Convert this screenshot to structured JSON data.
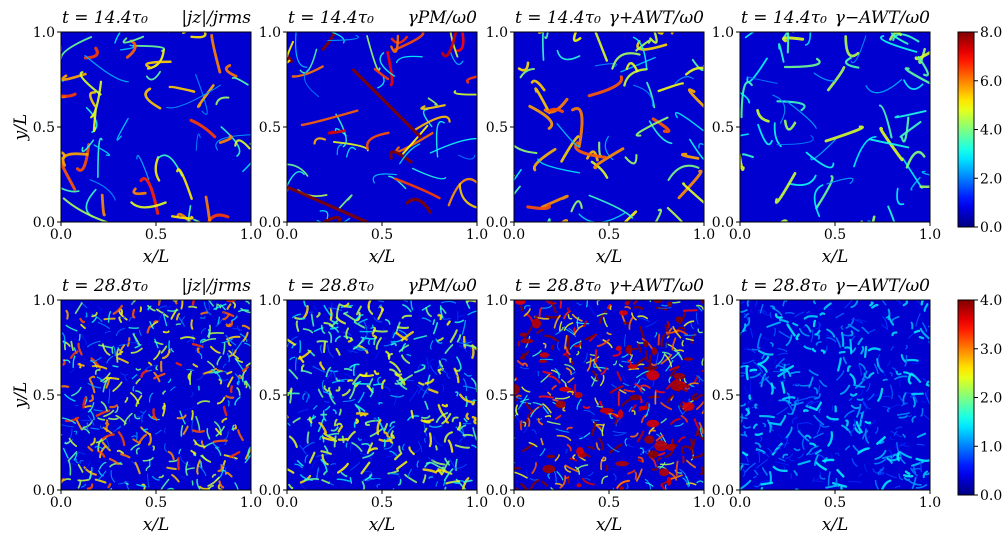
{
  "chart_data": [
    {
      "type": "heatmap",
      "title": "t = 14.4τ₀",
      "quantity": "|jz|/jrms",
      "xlabel": "x/L",
      "ylabel": "y/L",
      "xlim": [
        0.0,
        1.0
      ],
      "ylim": [
        0.0,
        1.0
      ],
      "x_ticks": [
        "0.0",
        "0.5",
        "1.0"
      ],
      "y_ticks": [
        "0.0",
        "0.5",
        "1.0"
      ],
      "colormap": "jet",
      "clim": [
        0.0,
        8.0
      ],
      "pattern": "sparse current sheets along X-point separatrices of a 2x2 vortex array",
      "intensity": 0.55
    },
    {
      "type": "heatmap",
      "title": "t = 14.4τ₀",
      "quantity": "γPM/ω0",
      "xlabel": "x/L",
      "ylabel": "",
      "xlim": [
        0.0,
        1.0
      ],
      "ylim": [
        0.0,
        1.0
      ],
      "x_ticks": [
        "0.0",
        "0.5",
        "1.0"
      ],
      "y_ticks": [
        "0.0",
        "0.5",
        "1.0"
      ],
      "colormap": "jet",
      "clim": [
        0.0,
        8.0
      ],
      "pattern": "sheets along separatrices plus diagonal band",
      "intensity": 0.75
    },
    {
      "type": "heatmap",
      "title": "t = 14.4τ₀",
      "quantity": "γ+AWT/ω0",
      "xlabel": "x/L",
      "ylabel": "",
      "xlim": [
        0.0,
        1.0
      ],
      "ylim": [
        0.0,
        1.0
      ],
      "x_ticks": [
        "0.0",
        "0.5",
        "1.0"
      ],
      "y_ticks": [
        "0.0",
        "0.5",
        "1.0"
      ],
      "colormap": "jet",
      "clim": [
        0.0,
        8.0
      ],
      "pattern": "filaments concentrated near vortex boundaries",
      "intensity": 0.5
    },
    {
      "type": "heatmap",
      "title": "t = 14.4τ₀",
      "quantity": "γ−AWT/ω0",
      "xlabel": "x/L",
      "ylabel": "",
      "xlim": [
        0.0,
        1.0
      ],
      "ylim": [
        0.0,
        1.0
      ],
      "x_ticks": [
        "0.0",
        "0.5",
        "1.0"
      ],
      "y_ticks": [
        "0.0",
        "0.5",
        "1.0"
      ],
      "colormap": "jet",
      "clim": [
        0.0,
        8.0
      ],
      "pattern": "weak filaments near vortex boundaries",
      "intensity": 0.35
    },
    {
      "type": "heatmap",
      "title": "t = 28.8τ₀",
      "quantity": "|jz|/jrms",
      "xlabel": "x/L",
      "ylabel": "y/L",
      "xlim": [
        0.0,
        1.0
      ],
      "ylim": [
        0.0,
        1.0
      ],
      "x_ticks": [
        "0.0",
        "0.5",
        "1.0"
      ],
      "y_ticks": [
        "0.0",
        "0.5",
        "1.0"
      ],
      "colormap": "jet",
      "clim": [
        0.0,
        4.0
      ],
      "pattern": "fully turbulent, dense small-scale current sheets",
      "intensity": 0.6
    },
    {
      "type": "heatmap",
      "title": "t = 28.8τ₀",
      "quantity": "γPM/ω0",
      "xlabel": "x/L",
      "ylabel": "",
      "xlim": [
        0.0,
        1.0
      ],
      "ylim": [
        0.0,
        1.0
      ],
      "x_ticks": [
        "0.0",
        "0.5",
        "1.0"
      ],
      "y_ticks": [
        "0.0",
        "0.5",
        "1.0"
      ],
      "colormap": "jet",
      "clim": [
        0.0,
        4.0
      ],
      "pattern": "turbulent filaments, moderate amplitude",
      "intensity": 0.45
    },
    {
      "type": "heatmap",
      "title": "t = 28.8τ₀",
      "quantity": "γ+AWT/ω0",
      "xlabel": "x/L",
      "ylabel": "",
      "xlim": [
        0.0,
        1.0
      ],
      "ylim": [
        0.0,
        1.0
      ],
      "x_ticks": [
        "0.0",
        "0.5",
        "1.0"
      ],
      "y_ticks": [
        "0.0",
        "0.5",
        "1.0"
      ],
      "colormap": "jet",
      "clim": [
        0.0,
        4.0
      ],
      "pattern": "turbulent with saturated red patches",
      "intensity": 0.85
    },
    {
      "type": "heatmap",
      "title": "t = 28.8τ₀",
      "quantity": "γ−AWT/ω0",
      "xlabel": "x/L",
      "ylabel": "",
      "xlim": [
        0.0,
        1.0
      ],
      "ylim": [
        0.0,
        1.0
      ],
      "x_ticks": [
        "0.0",
        "0.5",
        "1.0"
      ],
      "y_ticks": [
        "0.0",
        "0.5",
        "1.0"
      ],
      "colormap": "jet",
      "clim": [
        0.0,
        4.0
      ],
      "pattern": "weak scattered filaments",
      "intensity": 0.2
    }
  ],
  "colorbars": [
    {
      "ticks": [
        "0.0",
        "2.0",
        "4.0",
        "6.0",
        "8.0"
      ],
      "range": [
        0.0,
        8.0
      ]
    },
    {
      "ticks": [
        "0.0",
        "1.0",
        "2.0",
        "3.0",
        "4.0"
      ],
      "range": [
        0.0,
        4.0
      ]
    }
  ]
}
